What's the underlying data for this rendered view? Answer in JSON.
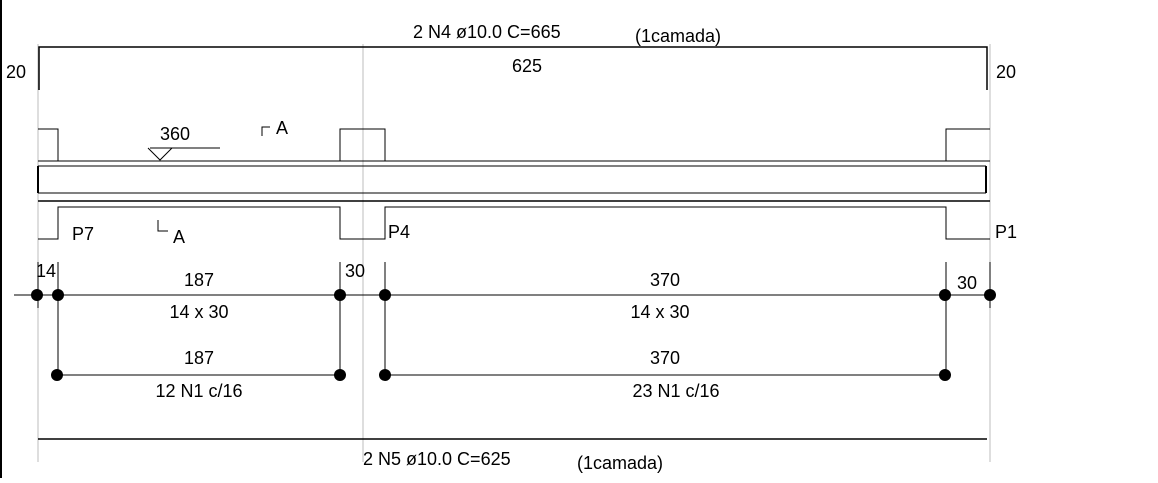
{
  "top_bar": {
    "label": "2 N4 ø10.0  C=665",
    "layer": "(1camada)",
    "length": "625",
    "hook_left": "20",
    "hook_right": "20"
  },
  "bottom_bar": {
    "label": "2 N5 ø10.0  C=625",
    "layer": "(1camada)"
  },
  "level_mark": "360",
  "section_mark": "A",
  "supports": [
    "P7",
    "P4",
    "P1"
  ],
  "support_widths": {
    "left": "14",
    "middle": "30",
    "right": "30"
  },
  "spans": [
    {
      "length": "187",
      "section": "14 x 30",
      "stirrup_length": "187",
      "stirrups": "12 N1 c/16"
    },
    {
      "length": "370",
      "section": "14 x 30",
      "stirrup_length": "370",
      "stirrups": "23 N1 c/16"
    }
  ]
}
